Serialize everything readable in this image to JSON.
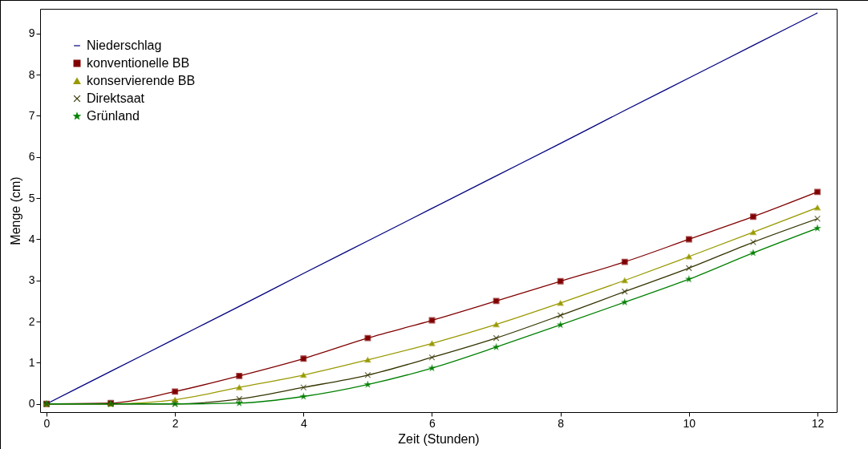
{
  "chart_data": {
    "type": "line",
    "xlabel": "Zeit (Stunden)",
    "ylabel": "Menge (cm)",
    "x": [
      0,
      1,
      2,
      3,
      4,
      5,
      6,
      7,
      8,
      9,
      10,
      11,
      12
    ],
    "xlim": [
      -0.1,
      12.3
    ],
    "xticks": [
      0,
      2,
      4,
      6,
      8,
      10,
      12
    ],
    "ylim": [
      -0.2,
      9.6
    ],
    "yticks": [
      0,
      1,
      2,
      3,
      4,
      5,
      6,
      7,
      8,
      9
    ],
    "grid": false,
    "legend": "top left",
    "series": [
      {
        "name": "Niederschlag",
        "color": "#000080",
        "marker": "none",
        "values": [
          0,
          0.79,
          1.58,
          2.37,
          3.17,
          3.96,
          4.75,
          5.54,
          6.33,
          7.13,
          7.92,
          8.71,
          9.5
        ]
      },
      {
        "name": "konventionelle BB",
        "color": "#800000",
        "marker": "square",
        "values": [
          0,
          0.02,
          0.3,
          0.68,
          1.1,
          1.6,
          2.03,
          2.5,
          2.98,
          3.45,
          4.0,
          4.55,
          5.15
        ]
      },
      {
        "name": "konservierende BB",
        "color": "#999900",
        "marker": "triangle",
        "values": [
          0,
          0,
          0.1,
          0.4,
          0.7,
          1.07,
          1.47,
          1.93,
          2.45,
          3.0,
          3.58,
          4.17,
          4.77
        ]
      },
      {
        "name": "Direktsaat",
        "color": "#333300",
        "marker": "cross",
        "values": [
          0,
          0,
          0,
          0.12,
          0.4,
          0.7,
          1.13,
          1.6,
          2.15,
          2.73,
          3.3,
          3.93,
          4.5
        ]
      },
      {
        "name": "Grünland",
        "color": "#008000",
        "marker": "star",
        "values": [
          0,
          0,
          0,
          0.02,
          0.18,
          0.47,
          0.87,
          1.38,
          1.92,
          2.47,
          3.03,
          3.67,
          4.27
        ]
      }
    ]
  }
}
